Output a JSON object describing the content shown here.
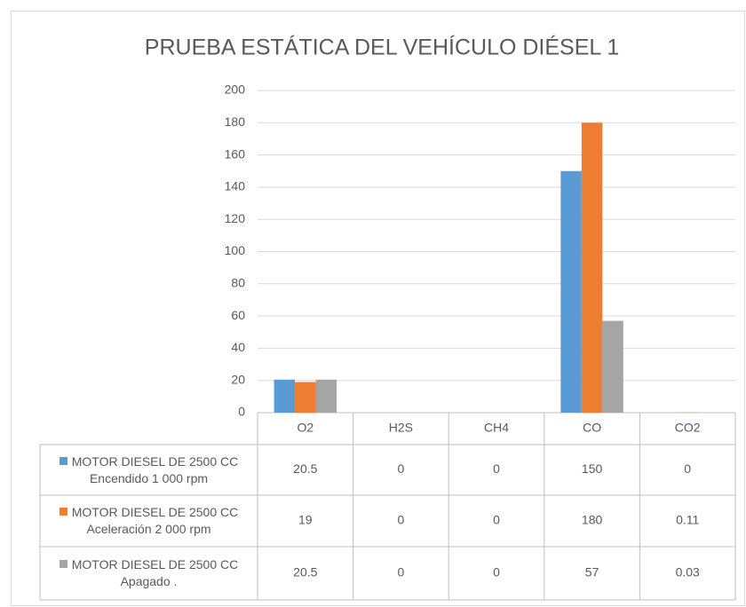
{
  "chart_data": {
    "type": "bar",
    "title": "PRUEBA ESTÁTICA DEL VEHÍCULO DIÉSEL 1",
    "categories": [
      "O2",
      "H2S",
      "CH4",
      "CO",
      "CO2"
    ],
    "series": [
      {
        "name": "MOTOR DIESEL DE 2500 CC Encendido 1 000 rpm",
        "color": "#5b9bd5",
        "values": [
          20.5,
          0,
          0,
          150,
          0
        ]
      },
      {
        "name": "MOTOR DIESEL DE 2500 CC Aceleración 2 000 rpm",
        "color": "#ed7d31",
        "values": [
          19,
          0,
          0,
          180,
          0.11
        ]
      },
      {
        "name": "MOTOR DIESEL DE 2500 CC Apagado .",
        "color": "#a5a5a5",
        "values": [
          20.5,
          0,
          0,
          57,
          0.03
        ]
      }
    ],
    "ylim": [
      0,
      200
    ],
    "yticks": [
      0,
      20,
      40,
      60,
      80,
      100,
      120,
      140,
      160,
      180,
      200
    ],
    "grid": true,
    "data_table": true
  }
}
